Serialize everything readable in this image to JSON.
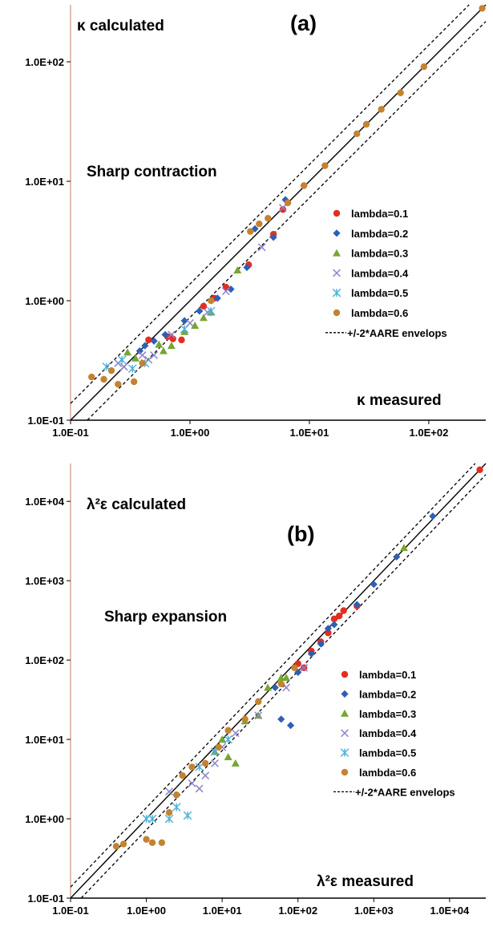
{
  "colors": {
    "lambda_0_1": "#e52d1f",
    "lambda_0_2": "#2e5fb8",
    "lambda_0_3": "#77a632",
    "lambda_0_4": "#8a84cc",
    "lambda_0_5": "#4ab0d8",
    "lambda_0_6": "#c48330",
    "axis": "#000000",
    "y_axis": "#d8a898"
  },
  "chart_data": [
    {
      "type": "scatter",
      "panel_label": "(a)",
      "annotation": "Sharp  contraction",
      "ylabel": "κ calculated",
      "xlabel": "κ measured",
      "log_x": true,
      "log_y": true,
      "xlim": [
        0.1,
        300
      ],
      "ylim": [
        0.1,
        300
      ],
      "x_ticks": [
        "1.0E-01",
        "1.0E+00",
        "1.0E+01",
        "1.0E+02"
      ],
      "y_ticks": [
        "1.0E-01",
        "1.0E+00",
        "1.0E+01",
        "1.0E+02"
      ],
      "grid": false,
      "legend_position": "right",
      "envelope_label": "+/-2*AARE envelops",
      "envelope_factor": 1.38,
      "series": [
        {
          "name": "lambda=0.1",
          "marker": "circle",
          "color_key": "lambda_0_1",
          "x": [
            0.45,
            0.65,
            0.72,
            0.85,
            1.3,
            1.6,
            2.0,
            3.1,
            5.0,
            6.0
          ],
          "y": [
            0.47,
            0.5,
            0.48,
            0.47,
            0.9,
            1.05,
            1.3,
            2.0,
            3.6,
            5.8
          ]
        },
        {
          "name": "lambda=0.2",
          "marker": "diamond",
          "color_key": "lambda_0_2",
          "x": [
            0.38,
            0.42,
            0.5,
            0.62,
            0.9,
            1.2,
            1.7,
            2.2,
            3.0,
            3.5,
            5.0,
            6.3,
            9.0
          ],
          "y": [
            0.38,
            0.42,
            0.46,
            0.52,
            0.68,
            0.82,
            1.05,
            1.25,
            1.9,
            4.0,
            3.4,
            7.0,
            9.2
          ]
        },
        {
          "name": "lambda=0.3",
          "marker": "triangle",
          "color_key": "lambda_0_3",
          "x": [
            0.3,
            0.35,
            0.55,
            0.6,
            0.7,
            0.9,
            1.1,
            1.3,
            1.5,
            2.5
          ],
          "y": [
            0.37,
            0.33,
            0.43,
            0.38,
            0.42,
            0.55,
            0.62,
            0.72,
            0.8,
            1.8
          ]
        },
        {
          "name": "lambda=0.4",
          "marker": "x",
          "color_key": "lambda_0_4",
          "x": [
            0.25,
            0.28,
            0.4,
            0.45,
            0.5,
            0.7,
            1.0,
            1.4,
            2.0,
            4.0,
            6.0
          ],
          "y": [
            0.3,
            0.28,
            0.35,
            0.32,
            0.35,
            0.52,
            0.65,
            0.8,
            1.2,
            2.8,
            6.0
          ]
        },
        {
          "name": "lambda=0.5",
          "marker": "star",
          "color_key": "lambda_0_5",
          "x": [
            0.2,
            0.27,
            0.33,
            0.42,
            0.9,
            1.5
          ],
          "y": [
            0.28,
            0.32,
            0.27,
            0.3,
            0.58,
            0.82
          ]
        },
        {
          "name": "lambda=0.6",
          "marker": "circle",
          "color_key": "lambda_0_6",
          "x": [
            0.15,
            0.19,
            0.22,
            0.25,
            0.34,
            0.4,
            1.5,
            3.2,
            3.8,
            4.5,
            6.6,
            9.0,
            13.5,
            25,
            30,
            40,
            58,
            91,
            280
          ],
          "y": [
            0.23,
            0.22,
            0.26,
            0.2,
            0.21,
            0.3,
            1.0,
            3.8,
            4.4,
            4.9,
            6.6,
            9.2,
            13.5,
            25,
            30,
            40,
            55,
            91,
            280
          ]
        }
      ]
    },
    {
      "type": "scatter",
      "panel_label": "(b)",
      "annotation": "Sharp expansion",
      "ylabel": "λ²ε calculated",
      "xlabel": "λ²ε measured",
      "log_x": true,
      "log_y": true,
      "xlim": [
        0.1,
        30000
      ],
      "ylim": [
        0.1,
        30000
      ],
      "x_ticks": [
        "1.0E-01",
        "1.0E+00",
        "1.0E+01",
        "1.0E+02",
        "1.0E+03",
        "1.0E+04"
      ],
      "y_ticks": [
        "1.0E-01",
        "1.0E+00",
        "1.0E+01",
        "1.0E+02",
        "1.0E+03",
        "1.0E+04"
      ],
      "grid": false,
      "legend_position": "right",
      "envelope_label": "+/-2*AARE envelops",
      "envelope_factor": 1.38,
      "series": [
        {
          "name": "lambda=0.1",
          "marker": "circle",
          "color_key": "lambda_0_1",
          "x": [
            100,
            120,
            150,
            200,
            250,
            300,
            350,
            400,
            600,
            25000
          ],
          "y": [
            90,
            80,
            130,
            170,
            220,
            330,
            360,
            420,
            480,
            25000
          ]
        },
        {
          "name": "lambda=0.2",
          "marker": "diamond",
          "color_key": "lambda_0_2",
          "x": [
            50,
            60,
            80,
            100,
            150,
            200,
            250,
            300,
            600,
            1000,
            2000,
            6000
          ],
          "y": [
            45,
            18,
            15,
            70,
            120,
            160,
            250,
            280,
            500,
            900,
            2000,
            6500
          ]
        },
        {
          "name": "lambda=0.3",
          "marker": "triangle",
          "color_key": "lambda_0_3",
          "x": [
            8,
            10,
            12,
            15,
            20,
            30,
            40,
            60,
            70,
            2500
          ],
          "y": [
            7,
            10,
            6,
            5,
            17,
            20,
            45,
            60,
            60,
            2600
          ]
        },
        {
          "name": "lambda=0.4",
          "marker": "x",
          "color_key": "lambda_0_4",
          "x": [
            2,
            4,
            5,
            6,
            8,
            10,
            15,
            30,
            70,
            120
          ],
          "y": [
            2.2,
            2.8,
            2.4,
            3.5,
            5,
            8,
            12,
            20,
            45,
            80
          ]
        },
        {
          "name": "lambda=0.5",
          "marker": "star",
          "color_key": "lambda_0_5",
          "x": [
            1,
            1.2,
            2,
            2.5,
            3.5,
            5,
            8,
            12
          ],
          "y": [
            1,
            1,
            1,
            1.4,
            1.1,
            4.5,
            7,
            10
          ]
        },
        {
          "name": "lambda=0.6",
          "marker": "circle",
          "color_key": "lambda_0_6",
          "x": [
            0.4,
            0.5,
            1,
            1.2,
            1.6,
            2,
            2.5,
            3,
            4,
            6,
            9,
            12,
            20,
            30,
            60,
            90
          ],
          "y": [
            0.45,
            0.48,
            0.55,
            0.5,
            0.5,
            1.2,
            2,
            3.5,
            4.5,
            5,
            8,
            13,
            18,
            30,
            50,
            80
          ]
        }
      ]
    }
  ]
}
